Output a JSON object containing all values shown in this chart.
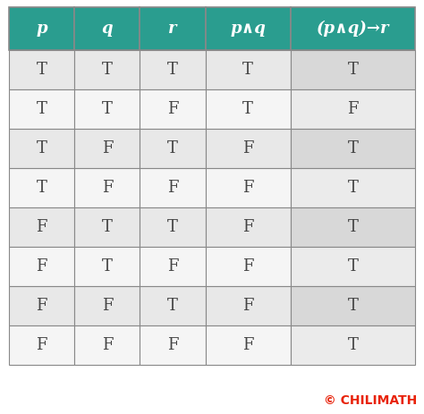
{
  "headers": [
    "p",
    "q",
    "r",
    "p∧q",
    "(p∧q)→r"
  ],
  "rows": [
    [
      "T",
      "T",
      "T",
      "T",
      "T"
    ],
    [
      "T",
      "T",
      "F",
      "T",
      "F"
    ],
    [
      "T",
      "F",
      "T",
      "F",
      "T"
    ],
    [
      "T",
      "F",
      "F",
      "F",
      "T"
    ],
    [
      "F",
      "T",
      "T",
      "F",
      "T"
    ],
    [
      "F",
      "T",
      "F",
      "F",
      "T"
    ],
    [
      "F",
      "F",
      "T",
      "F",
      "T"
    ],
    [
      "F",
      "F",
      "F",
      "F",
      "T"
    ]
  ],
  "header_bg": "#2a9d8f",
  "header_text_color": "#ffffff",
  "row_colors": [
    "#e8e8e8",
    "#f5f5f5"
  ],
  "last_col_colors": [
    "#d8d8d8",
    "#ebebeb"
  ],
  "cell_text_color": "#444444",
  "border_color": "#888888",
  "watermark_text": "© CHILIMATH",
  "watermark_color": "#e8230a",
  "fig_bg": "#ffffff",
  "col_widths": [
    1.0,
    1.0,
    1.0,
    1.3,
    1.9
  ],
  "header_fontsize": 13,
  "cell_fontsize": 13,
  "watermark_fontsize": 10
}
